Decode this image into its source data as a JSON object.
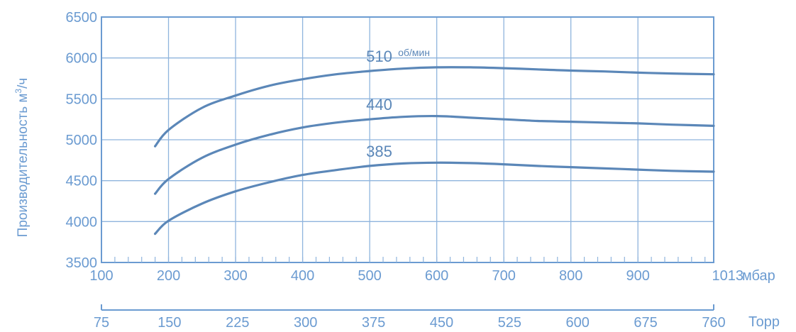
{
  "chart_data": {
    "type": "line",
    "ylabel": "Производительность м³/ч",
    "ylabel_main": "Производительность м",
    "ylabel_sup": "3",
    "ylabel_tail": "/ч",
    "ylim": [
      3500,
      6500
    ],
    "yticks": [
      3500,
      4000,
      4500,
      5000,
      5500,
      6000,
      6500
    ],
    "xlim": [
      100,
      1013
    ],
    "xticks": [
      100,
      200,
      300,
      400,
      500,
      600,
      700,
      800,
      900,
      1013
    ],
    "xunit": "мбар",
    "x2ticks": [
      75,
      150,
      225,
      300,
      375,
      450,
      525,
      600,
      675,
      760
    ],
    "x2unit": "Торр",
    "grid": true,
    "colors": {
      "line": "#5b87b8",
      "axis": "#6b9bd1",
      "text": "#6b9bd1",
      "grid": "#8fb4dd"
    },
    "series": [
      {
        "name": "510",
        "unit": "об/мин",
        "x": [
          180,
          200,
          250,
          300,
          350,
          400,
          450,
          500,
          550,
          600,
          650,
          700,
          750,
          800,
          850,
          900,
          950,
          1013
        ],
        "y": [
          4920,
          5120,
          5390,
          5540,
          5660,
          5740,
          5800,
          5840,
          5870,
          5885,
          5885,
          5875,
          5860,
          5845,
          5835,
          5820,
          5810,
          5800
        ]
      },
      {
        "name": "440",
        "unit": "",
        "x": [
          180,
          200,
          250,
          300,
          350,
          400,
          450,
          500,
          550,
          600,
          650,
          700,
          750,
          800,
          850,
          900,
          950,
          1013
        ],
        "y": [
          4340,
          4520,
          4780,
          4940,
          5060,
          5150,
          5210,
          5250,
          5280,
          5290,
          5270,
          5250,
          5230,
          5220,
          5210,
          5200,
          5185,
          5170
        ]
      },
      {
        "name": "385",
        "unit": "",
        "x": [
          180,
          200,
          250,
          300,
          350,
          400,
          450,
          500,
          550,
          600,
          650,
          700,
          750,
          800,
          850,
          900,
          950,
          1013
        ],
        "y": [
          3850,
          4010,
          4220,
          4370,
          4480,
          4570,
          4630,
          4680,
          4710,
          4720,
          4715,
          4700,
          4680,
          4665,
          4650,
          4635,
          4620,
          4610
        ]
      }
    ]
  }
}
